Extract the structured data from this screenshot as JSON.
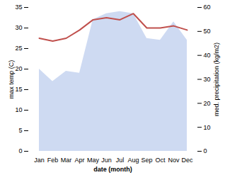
{
  "chart_data": {
    "type": "line",
    "xlabel": "date (month)",
    "ylabel": "max temp (C)",
    "y2label": "med. precipitation (kg/m2)",
    "categories": [
      "Jan",
      "Feb",
      "Mar",
      "Apr",
      "May",
      "Jun",
      "Jul",
      "Aug",
      "Sep",
      "Oct",
      "Nov",
      "Dec"
    ],
    "series": [
      {
        "type": "area",
        "axis": "y2",
        "color": "#c5d4f0",
        "values": [
          34.3,
          29.1,
          33.4,
          32.6,
          54.9,
          57.4,
          58.3,
          57.4,
          47.1,
          46.3,
          54.0,
          46.3
        ]
      },
      {
        "type": "line",
        "color": "#c0504d",
        "values": [
          27.5,
          26.8,
          27.5,
          29.5,
          32.0,
          32.5,
          32.0,
          33.5,
          30.0,
          30.0,
          30.5,
          29.5
        ]
      }
    ],
    "ylim": [
      0,
      35
    ],
    "yticks": [
      0,
      5,
      10,
      15,
      20,
      25,
      30,
      35
    ],
    "y2lim": [
      0,
      60
    ],
    "y2ticks": [
      0,
      10,
      20,
      30,
      40,
      50,
      60
    ]
  }
}
